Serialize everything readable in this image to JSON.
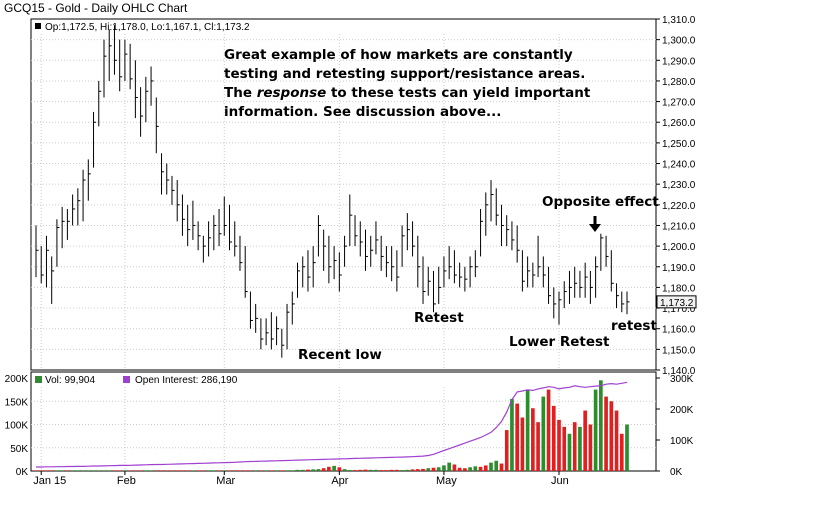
{
  "title": "GCQ15 - Gold - Daily OHLC Chart",
  "price_legend": "Op:1,172.5, Hi:1,178.0, Lo:1,167.1, Cl:1,173.2",
  "volume_legend": "Vol: 99,904",
  "oi_legend": "Open Interest: 286,190",
  "last_price_label": "1,173.2",
  "annotations": {
    "main_note": {
      "line1": "Great example of how markets are constantly",
      "line2": "testing and retesting support/resistance areas.",
      "line3_before": "The ",
      "line3_em": "response",
      "line3_after": " to these tests can yield important",
      "line4": "information.  See discussion above..."
    },
    "recent_low": "Recent low",
    "retest": "Retest",
    "lower_retest": "Lower Retest",
    "opposite_effect": "Opposite effect",
    "retest_small": "retest"
  },
  "colors": {
    "background": "#ffffff",
    "grid": "#cccccc",
    "price_bar": "#000000",
    "volume_up": "#2e8b2e",
    "volume_down": "#e02020",
    "open_interest": "#a040d0"
  },
  "chart_data": [
    {
      "type": "ohlc",
      "title": "GCQ15 - Gold - Daily OHLC Chart",
      "x_tick_labels": [
        "Jan 15",
        "Feb",
        "Mar",
        "Apr",
        "May",
        "Jun"
      ],
      "x_tick_index": [
        1,
        17,
        36,
        58,
        78,
        100
      ],
      "y_tick_labels": [
        "1,140.0",
        "1,150.0",
        "1,160.0",
        "1,170.0",
        "1,180.0",
        "1,190.0",
        "1,200.0",
        "1,210.0",
        "1,220.0",
        "1,230.0",
        "1,240.0",
        "1,250.0",
        "1,260.0",
        "1,270.0",
        "1,280.0",
        "1,290.0",
        "1,300.0",
        "1,310.0"
      ],
      "ylim": [
        1140,
        1310
      ],
      "grid": true,
      "bars": [
        {
          "h": 1210,
          "l": 1185,
          "c": 1198
        },
        {
          "h": 1200,
          "l": 1182,
          "c": 1186
        },
        {
          "h": 1205,
          "l": 1180,
          "c": 1198
        },
        {
          "h": 1195,
          "l": 1172,
          "c": 1188
        },
        {
          "h": 1213,
          "l": 1190,
          "c": 1209
        },
        {
          "h": 1219,
          "l": 1199,
          "c": 1212
        },
        {
          "h": 1218,
          "l": 1203,
          "c": 1212
        },
        {
          "h": 1225,
          "l": 1210,
          "c": 1218
        },
        {
          "h": 1228,
          "l": 1210,
          "c": 1222
        },
        {
          "h": 1237,
          "l": 1212,
          "c": 1232
        },
        {
          "h": 1242,
          "l": 1222,
          "c": 1235
        },
        {
          "h": 1265,
          "l": 1238,
          "c": 1260
        },
        {
          "h": 1280,
          "l": 1258,
          "c": 1275
        },
        {
          "h": 1300,
          "l": 1272,
          "c": 1292
        },
        {
          "h": 1305,
          "l": 1280,
          "c": 1297
        },
        {
          "h": 1307,
          "l": 1283,
          "c": 1290
        },
        {
          "h": 1300,
          "l": 1275,
          "c": 1282
        },
        {
          "h": 1300,
          "l": 1280,
          "c": 1293
        },
        {
          "h": 1298,
          "l": 1276,
          "c": 1281
        },
        {
          "h": 1290,
          "l": 1262,
          "c": 1272
        },
        {
          "h": 1277,
          "l": 1253,
          "c": 1263
        },
        {
          "h": 1282,
          "l": 1260,
          "c": 1275
        },
        {
          "h": 1287,
          "l": 1268,
          "c": 1280
        },
        {
          "h": 1272,
          "l": 1245,
          "c": 1258
        },
        {
          "h": 1245,
          "l": 1225,
          "c": 1236
        },
        {
          "h": 1240,
          "l": 1225,
          "c": 1232
        },
        {
          "h": 1234,
          "l": 1220,
          "c": 1227
        },
        {
          "h": 1232,
          "l": 1212,
          "c": 1220
        },
        {
          "h": 1225,
          "l": 1205,
          "c": 1213
        },
        {
          "h": 1220,
          "l": 1200,
          "c": 1208
        },
        {
          "h": 1222,
          "l": 1203,
          "c": 1210
        },
        {
          "h": 1212,
          "l": 1198,
          "c": 1205
        },
        {
          "h": 1205,
          "l": 1192,
          "c": 1200
        },
        {
          "h": 1212,
          "l": 1195,
          "c": 1204
        },
        {
          "h": 1215,
          "l": 1198,
          "c": 1210
        },
        {
          "h": 1218,
          "l": 1200,
          "c": 1206
        },
        {
          "h": 1224,
          "l": 1205,
          "c": 1210
        },
        {
          "h": 1220,
          "l": 1198,
          "c": 1202
        },
        {
          "h": 1212,
          "l": 1195,
          "c": 1200
        },
        {
          "h": 1205,
          "l": 1188,
          "c": 1192
        },
        {
          "h": 1200,
          "l": 1175,
          "c": 1178
        },
        {
          "h": 1178,
          "l": 1160,
          "c": 1164
        },
        {
          "h": 1172,
          "l": 1158,
          "c": 1165
        },
        {
          "h": 1165,
          "l": 1150,
          "c": 1155
        },
        {
          "h": 1165,
          "l": 1152,
          "c": 1158
        },
        {
          "h": 1168,
          "l": 1150,
          "c": 1155
        },
        {
          "h": 1166,
          "l": 1152,
          "c": 1160
        },
        {
          "h": 1160,
          "l": 1146,
          "c": 1152
        },
        {
          "h": 1172,
          "l": 1150,
          "c": 1168
        },
        {
          "h": 1178,
          "l": 1162,
          "c": 1172
        },
        {
          "h": 1192,
          "l": 1175,
          "c": 1188
        },
        {
          "h": 1195,
          "l": 1180,
          "c": 1190
        },
        {
          "h": 1198,
          "l": 1178,
          "c": 1185
        },
        {
          "h": 1200,
          "l": 1180,
          "c": 1192
        },
        {
          "h": 1215,
          "l": 1195,
          "c": 1210
        },
        {
          "h": 1208,
          "l": 1188,
          "c": 1200
        },
        {
          "h": 1205,
          "l": 1182,
          "c": 1190
        },
        {
          "h": 1200,
          "l": 1184,
          "c": 1193
        },
        {
          "h": 1197,
          "l": 1178,
          "c": 1186
        },
        {
          "h": 1205,
          "l": 1190,
          "c": 1200
        },
        {
          "h": 1225,
          "l": 1200,
          "c": 1215
        },
        {
          "h": 1215,
          "l": 1200,
          "c": 1205
        },
        {
          "h": 1212,
          "l": 1195,
          "c": 1202
        },
        {
          "h": 1208,
          "l": 1188,
          "c": 1195
        },
        {
          "h": 1205,
          "l": 1190,
          "c": 1198
        },
        {
          "h": 1212,
          "l": 1196,
          "c": 1203
        },
        {
          "h": 1205,
          "l": 1188,
          "c": 1195
        },
        {
          "h": 1200,
          "l": 1185,
          "c": 1192
        },
        {
          "h": 1200,
          "l": 1183,
          "c": 1190
        },
        {
          "h": 1198,
          "l": 1178,
          "c": 1185
        },
        {
          "h": 1210,
          "l": 1190,
          "c": 1205
        },
        {
          "h": 1216,
          "l": 1198,
          "c": 1208
        },
        {
          "h": 1212,
          "l": 1195,
          "c": 1200
        },
        {
          "h": 1205,
          "l": 1180,
          "c": 1190
        },
        {
          "h": 1195,
          "l": 1172,
          "c": 1178
        },
        {
          "h": 1190,
          "l": 1176,
          "c": 1183
        },
        {
          "h": 1188,
          "l": 1168,
          "c": 1172
        },
        {
          "h": 1190,
          "l": 1172,
          "c": 1180
        },
        {
          "h": 1195,
          "l": 1180,
          "c": 1188
        },
        {
          "h": 1200,
          "l": 1184,
          "c": 1190
        },
        {
          "h": 1198,
          "l": 1182,
          "c": 1186
        },
        {
          "h": 1192,
          "l": 1180,
          "c": 1185
        },
        {
          "h": 1190,
          "l": 1178,
          "c": 1184
        },
        {
          "h": 1195,
          "l": 1180,
          "c": 1190
        },
        {
          "h": 1198,
          "l": 1185,
          "c": 1190
        },
        {
          "h": 1218,
          "l": 1195,
          "c": 1212
        },
        {
          "h": 1226,
          "l": 1205,
          "c": 1220
        },
        {
          "h": 1232,
          "l": 1212,
          "c": 1225
        },
        {
          "h": 1228,
          "l": 1210,
          "c": 1215
        },
        {
          "h": 1220,
          "l": 1200,
          "c": 1210
        },
        {
          "h": 1215,
          "l": 1200,
          "c": 1208
        },
        {
          "h": 1212,
          "l": 1198,
          "c": 1203
        },
        {
          "h": 1210,
          "l": 1192,
          "c": 1198
        },
        {
          "h": 1198,
          "l": 1178,
          "c": 1183
        },
        {
          "h": 1195,
          "l": 1180,
          "c": 1188
        },
        {
          "h": 1192,
          "l": 1180,
          "c": 1186
        },
        {
          "h": 1205,
          "l": 1185,
          "c": 1190
        },
        {
          "h": 1195,
          "l": 1180,
          "c": 1186
        },
        {
          "h": 1190,
          "l": 1172,
          "c": 1176
        },
        {
          "h": 1180,
          "l": 1165,
          "c": 1172
        },
        {
          "h": 1178,
          "l": 1162,
          "c": 1174
        },
        {
          "h": 1183,
          "l": 1170,
          "c": 1178
        },
        {
          "h": 1188,
          "l": 1172,
          "c": 1180
        },
        {
          "h": 1190,
          "l": 1175,
          "c": 1182
        },
        {
          "h": 1188,
          "l": 1175,
          "c": 1180
        },
        {
          "h": 1192,
          "l": 1175,
          "c": 1185
        },
        {
          "h": 1188,
          "l": 1172,
          "c": 1180
        },
        {
          "h": 1195,
          "l": 1175,
          "c": 1190
        },
        {
          "h": 1206,
          "l": 1188,
          "c": 1204
        },
        {
          "h": 1205,
          "l": 1190,
          "c": 1195
        },
        {
          "h": 1198,
          "l": 1178,
          "c": 1182
        },
        {
          "h": 1182,
          "l": 1170,
          "c": 1176
        },
        {
          "h": 1178,
          "l": 1168,
          "c": 1172
        },
        {
          "h": 1178,
          "l": 1167,
          "c": 1173
        }
      ]
    },
    {
      "type": "bar",
      "series_note": "volume and open interest",
      "ylim_left": [
        0,
        200000
      ],
      "ylim_right": [
        0,
        300000
      ],
      "y_tick_labels_left": [
        "0K",
        "50K",
        "100K",
        "150K",
        "200K"
      ],
      "y_tick_labels_right": [
        "0K",
        "100K",
        "200K",
        "300K"
      ],
      "volume": [
        1500,
        1500,
        1500,
        1500,
        1500,
        1500,
        1500,
        1500,
        1500,
        1500,
        1500,
        1500,
        1500,
        1500,
        1500,
        1500,
        1500,
        1500,
        1500,
        1500,
        1500,
        1500,
        1500,
        1500,
        1500,
        1500,
        1500,
        1500,
        1500,
        1500,
        1500,
        1500,
        1500,
        1500,
        1500,
        1500,
        1500,
        1500,
        1500,
        1500,
        1500,
        1500,
        1500,
        1500,
        1500,
        1500,
        1500,
        1500,
        1500,
        1500,
        2500,
        2500,
        3000,
        3500,
        4000,
        6000,
        9000,
        11000,
        8000,
        4000,
        2000,
        2000,
        2500,
        3000,
        2500,
        2500,
        2000,
        2000,
        2500,
        2500,
        2000,
        2500,
        3500,
        4000,
        4500,
        6000,
        7000,
        8000,
        12000,
        18000,
        14000,
        7000,
        6000,
        8000,
        10000,
        9000,
        12000,
        18000,
        22000,
        16000,
        88000,
        155000,
        145000,
        115000,
        175000,
        135000,
        105000,
        160000,
        175000,
        140000,
        110000,
        95000,
        80000,
        105000,
        95000,
        130000,
        100000,
        175000,
        195000,
        160000,
        150000,
        130000,
        80000,
        100000
      ],
      "volume_up": [
        0,
        0,
        0,
        0,
        1,
        1,
        0,
        1,
        1,
        1,
        1,
        1,
        1,
        1,
        1,
        0,
        0,
        1,
        0,
        0,
        0,
        1,
        1,
        0,
        0,
        0,
        0,
        0,
        0,
        0,
        1,
        0,
        0,
        1,
        1,
        0,
        1,
        0,
        0,
        0,
        0,
        0,
        1,
        0,
        1,
        0,
        1,
        0,
        1,
        1,
        1,
        1,
        0,
        1,
        1,
        0,
        0,
        1,
        0,
        1,
        1,
        0,
        0,
        0,
        1,
        1,
        0,
        0,
        0,
        0,
        1,
        1,
        0,
        0,
        0,
        1,
        0,
        1,
        1,
        1,
        0,
        0,
        0,
        1,
        1,
        0,
        0,
        1,
        1,
        0,
        0,
        1,
        0,
        0,
        1,
        0,
        0,
        1,
        0,
        0,
        0,
        0,
        1,
        0,
        1,
        0,
        0,
        1,
        1,
        0,
        0,
        0,
        0,
        1
      ],
      "open_interest": [
        13000,
        13000,
        13500,
        13500,
        14000,
        14000,
        14500,
        14500,
        15000,
        15000,
        15500,
        16000,
        16000,
        16500,
        17000,
        17500,
        18000,
        18000,
        18500,
        19000,
        19500,
        20000,
        20500,
        21000,
        21000,
        21500,
        22000,
        22500,
        23000,
        23500,
        24000,
        24500,
        25000,
        25500,
        26000,
        26500,
        27000,
        27500,
        28000,
        29000,
        30000,
        30500,
        31000,
        31500,
        32000,
        32500,
        33000,
        33500,
        34000,
        34500,
        35000,
        35500,
        36000,
        36500,
        37000,
        37500,
        38000,
        38500,
        39000,
        39500,
        40000,
        40500,
        41000,
        41500,
        42000,
        42500,
        43000,
        43500,
        44000,
        44500,
        45000,
        45500,
        46000,
        47000,
        48000,
        50000,
        54000,
        60000,
        66000,
        72000,
        78000,
        84000,
        90000,
        96000,
        102000,
        108000,
        116000,
        125000,
        140000,
        160000,
        190000,
        230000,
        255000,
        258000,
        262000,
        260000,
        265000,
        268000,
        272000,
        270000,
        265000,
        268000,
        270000,
        275000,
        272000,
        270000,
        272000,
        274000,
        275000,
        280000,
        282000,
        280000,
        283000,
        286190
      ]
    }
  ]
}
